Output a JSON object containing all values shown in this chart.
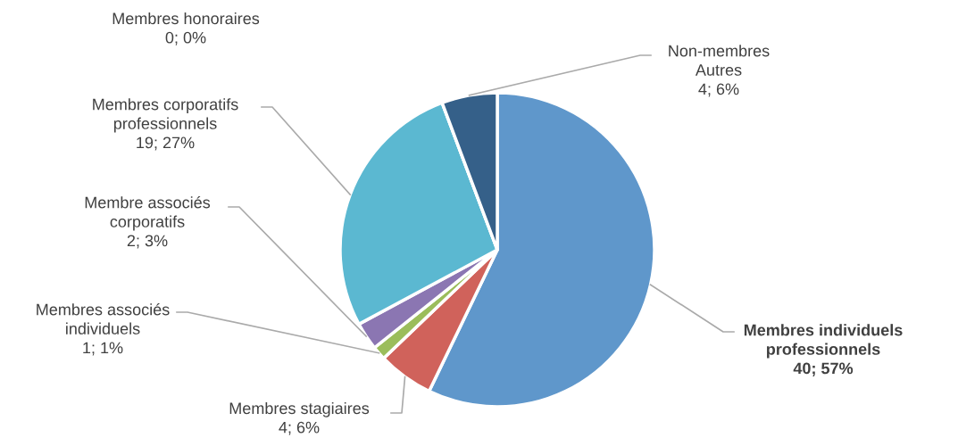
{
  "chart_data": {
    "type": "pie",
    "categories": [
      "Membres individuels\nprofessionnels",
      "Membres stagiaires",
      "Membres associés\nindividuels",
      "Membre associés\ncorporatifs",
      "Membres corporatifs\nprofessionnels",
      "Membres honoraires",
      "Non-membres\nAutres"
    ],
    "values": [
      40,
      4,
      1,
      2,
      19,
      0,
      4
    ],
    "value_labels": [
      "40; 57%",
      "4; 6%",
      "1; 1%",
      "2; 3%",
      "19; 27%",
      "0; 0%",
      "4; 6%"
    ],
    "colors": [
      "#5f97cb",
      "#d0625b",
      "#9bbd5b",
      "#8b76b2",
      "#5bb8d1",
      "#f59d3d",
      "#356089"
    ]
  }
}
